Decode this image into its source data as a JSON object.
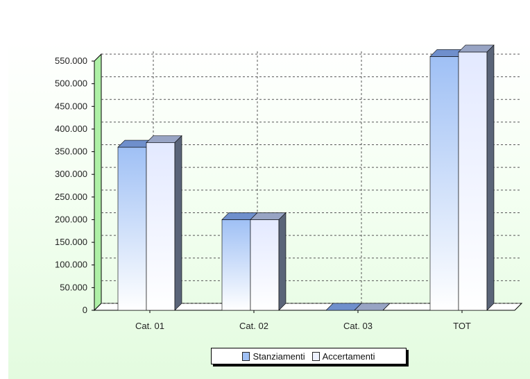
{
  "chart_data": {
    "type": "bar",
    "categories": [
      "Cat. 01",
      "Cat. 02",
      "Cat. 03",
      "TOT"
    ],
    "series": [
      {
        "name": "Stanziamenti",
        "values": [
          360000,
          200000,
          0,
          560000
        ],
        "color": "#9fc0f5"
      },
      {
        "name": "Accertamenti",
        "values": [
          370000,
          200000,
          0,
          570000
        ],
        "color": "#eef2ff"
      }
    ],
    "ylim": [
      0,
      550000
    ],
    "yticks": [
      0,
      50000,
      100000,
      150000,
      200000,
      250000,
      300000,
      350000,
      400000,
      450000,
      500000,
      550000
    ],
    "ytick_labels": [
      "0",
      "50.000",
      "100.000",
      "150.000",
      "200.000",
      "250.000",
      "300.000",
      "350.000",
      "400.000",
      "450.000",
      "500.000",
      "550.000"
    ],
    "grid": true,
    "legend_position": "bottom",
    "colors": {
      "wall": "#aef0a6",
      "grid": "#555555",
      "side": "#5a6478"
    }
  }
}
